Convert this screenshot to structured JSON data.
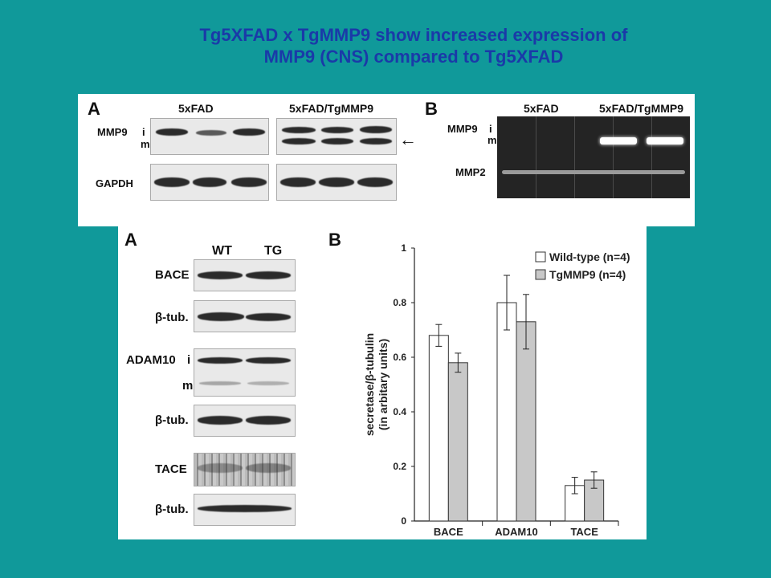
{
  "slide": {
    "title_line1": "Tg5XFAD x TgMMP9 show increased expression of",
    "title_line2": "MMP9  (CNS) compared to Tg5XFAD"
  },
  "top_panel_a": {
    "letter": "A",
    "group1": "5xFAD",
    "group2": "5xFAD/TgMMP9",
    "row1_label": "MMP9",
    "row1_i": "i",
    "row1_m": "m",
    "row2_label": "GAPDH",
    "arrow": "←"
  },
  "top_panel_b": {
    "letter": "B",
    "group1": "5xFAD",
    "group2": "5xFAD/TgMMP9",
    "row1_label": "MMP9",
    "row1_i": "i",
    "row1_m": "m",
    "row2_label": "MMP2"
  },
  "bottom_panel_a": {
    "letter": "A",
    "col_wt": "WT",
    "col_tg": "TG",
    "rows": [
      "BACE",
      "β-tub.",
      "ADAM10",
      "β-tub.",
      "TACE",
      "β-tub."
    ],
    "adam_i": "i",
    "adam_m": "m"
  },
  "bottom_panel_b": {
    "letter": "B"
  },
  "chart_data": {
    "type": "bar",
    "categories": [
      "BACE",
      "ADAM10",
      "TACE"
    ],
    "series": [
      {
        "name": "Wild-type (n=4)",
        "values": [
          0.68,
          0.8,
          0.13
        ],
        "errors": [
          0.04,
          0.1,
          0.03
        ],
        "color": "#ffffff"
      },
      {
        "name": "TgMMP9 (n=4)",
        "values": [
          0.58,
          0.73,
          0.15
        ],
        "errors": [
          0.035,
          0.1,
          0.03
        ],
        "color": "#c8c8c8"
      }
    ],
    "ylabel_line1": "secretase/β-tubulin",
    "ylabel_line2": "(in arbitary units)",
    "yticks": [
      "0",
      "0.2",
      "0.4",
      "0.6",
      "0.8",
      "1"
    ],
    "ylim": [
      0,
      1
    ],
    "grid": false,
    "legend_position": "top-right"
  }
}
